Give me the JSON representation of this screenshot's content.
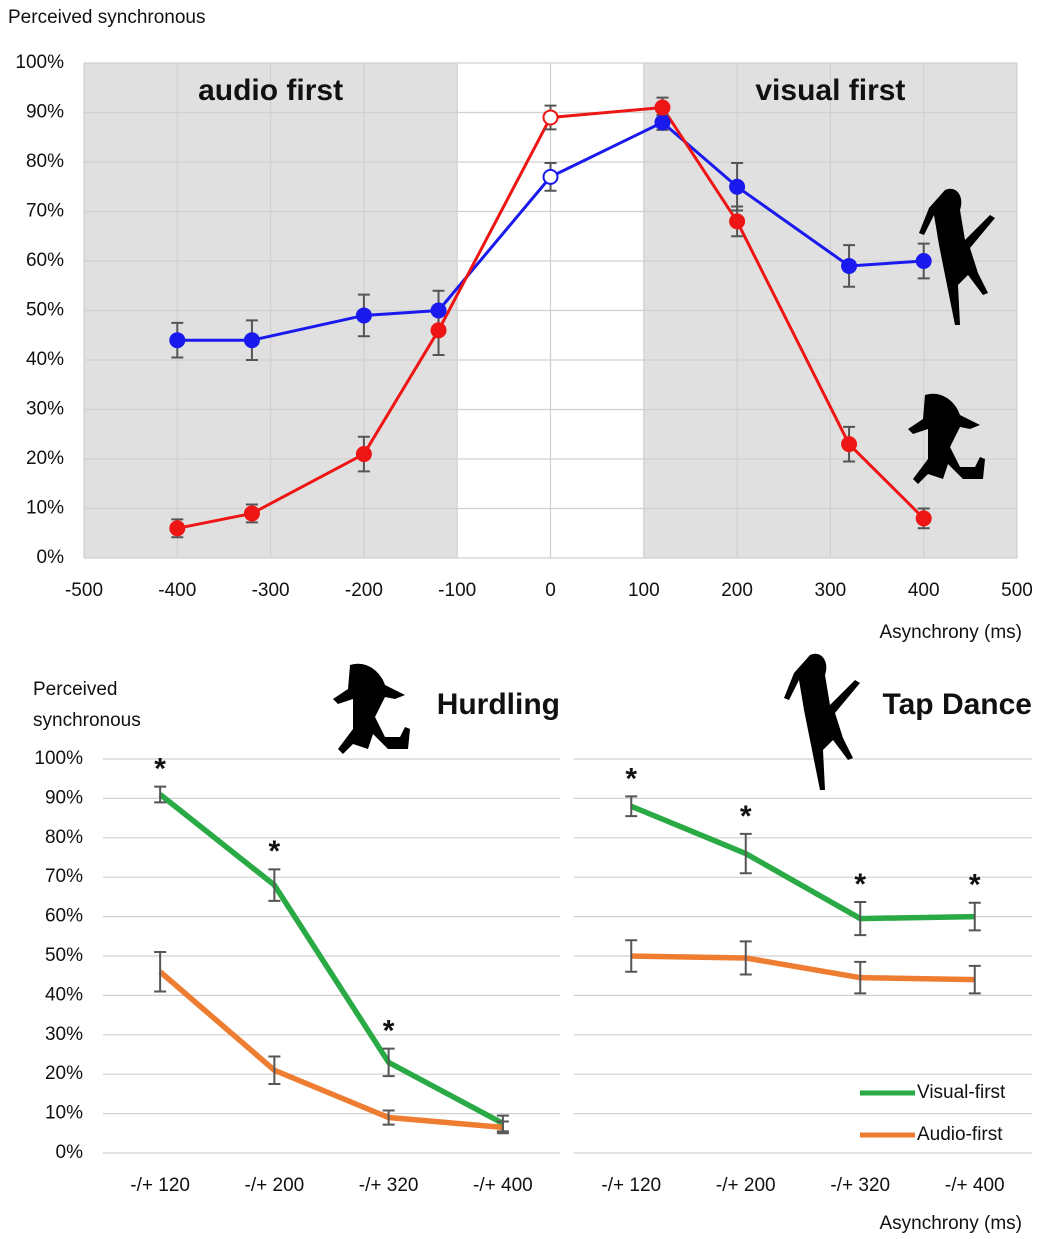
{
  "chart_data": [
    {
      "type": "line",
      "ylabel": "Perceived synchronous",
      "xlabel": "Asynchrony (ms)",
      "annotations": [
        "audio first",
        "visual first"
      ],
      "shaded_ranges": [
        [
          -500,
          -100
        ],
        [
          100,
          500
        ]
      ],
      "x": [
        -400,
        -320,
        -200,
        -120,
        0,
        120,
        200,
        320,
        400
      ],
      "xlim": [
        -500,
        500
      ],
      "xticks": [
        -500,
        -400,
        -300,
        -200,
        -100,
        0,
        100,
        200,
        300,
        400,
        500
      ],
      "ylim": [
        0,
        100
      ],
      "yticks": [
        {
          "value": 0,
          "label": "0%"
        },
        {
          "value": 10,
          "label": "10%"
        },
        {
          "value": 20,
          "label": "20%"
        },
        {
          "value": 30,
          "label": "30%"
        },
        {
          "value": 40,
          "label": "40%"
        },
        {
          "value": 50,
          "label": "50%"
        },
        {
          "value": 60,
          "label": "60%"
        },
        {
          "value": 70,
          "label": "70%"
        },
        {
          "value": 80,
          "label": "80%"
        },
        {
          "value": 90,
          "label": "90%"
        },
        {
          "value": 100,
          "label": "100%"
        }
      ],
      "grid": true,
      "series": [
        {
          "color": "#1a1aee",
          "values": [
            44,
            44,
            49,
            50,
            77,
            88,
            75,
            59,
            60
          ],
          "errors": [
            3.5,
            4,
            4.2,
            4,
            2.8,
            1.5,
            4.8,
            4.2,
            3.5
          ],
          "open": [
            false,
            false,
            false,
            false,
            true,
            false,
            false,
            false,
            false
          ]
        },
        {
          "color": "#ee1515",
          "values": [
            6,
            9,
            21,
            46,
            89,
            91,
            68,
            23,
            8
          ],
          "errors": [
            1.8,
            1.8,
            3.5,
            5,
            2.4,
            2,
            3,
            3.5,
            2
          ],
          "open": [
            false,
            false,
            false,
            false,
            true,
            false,
            false,
            false,
            false
          ]
        }
      ]
    },
    {
      "type": "line",
      "title": "Hurdling",
      "ylabel": [
        "Perceived",
        "synchronous"
      ],
      "categories": [
        "-/+ 120",
        "-/+ 200",
        "-/+ 320",
        "-/+ 400"
      ],
      "ylim": [
        0,
        100
      ],
      "yticks": [
        {
          "value": 0,
          "label": "0%"
        },
        {
          "value": 10,
          "label": "10%"
        },
        {
          "value": 20,
          "label": "20%"
        },
        {
          "value": 30,
          "label": "30%"
        },
        {
          "value": 40,
          "label": "40%"
        },
        {
          "value": 50,
          "label": "50%"
        },
        {
          "value": 60,
          "label": "60%"
        },
        {
          "value": 70,
          "label": "70%"
        },
        {
          "value": 80,
          "label": "80%"
        },
        {
          "value": 90,
          "label": "90%"
        },
        {
          "value": 100,
          "label": "100%"
        }
      ],
      "grid": true,
      "significance": [
        "*",
        "*",
        "*",
        null
      ],
      "series": [
        {
          "name": "Visual-first",
          "color": "#2aaa45",
          "values": [
            91,
            68,
            23,
            7.5
          ],
          "errors": [
            2,
            4,
            3.5,
            2
          ]
        },
        {
          "name": "Audio-first",
          "color": "#ee7d31",
          "values": [
            46,
            21,
            9,
            6.5
          ],
          "errors": [
            5,
            3.5,
            1.8,
            1.5
          ]
        }
      ]
    },
    {
      "type": "line",
      "title": "Tap Dance",
      "xlabel": "Asynchrony (ms)",
      "categories": [
        "-/+ 120",
        "-/+ 200",
        "-/+ 320",
        "-/+ 400"
      ],
      "ylim": [
        0,
        100
      ],
      "yticks": [
        0,
        10,
        20,
        30,
        40,
        50,
        60,
        70,
        80,
        90,
        100
      ],
      "ytick_labels": false,
      "grid": true,
      "legend": "lower right",
      "significance": [
        "*",
        "*",
        "*",
        "*"
      ],
      "series": [
        {
          "name": "Visual-first",
          "color": "#2aaa45",
          "values": [
            88,
            76,
            59.5,
            60
          ],
          "errors": [
            2.5,
            5,
            4.2,
            3.5
          ]
        },
        {
          "name": "Audio-first",
          "color": "#ee7d31",
          "values": [
            50,
            49.5,
            44.5,
            44
          ],
          "errors": [
            4,
            4.2,
            4,
            3.5
          ]
        }
      ]
    }
  ]
}
